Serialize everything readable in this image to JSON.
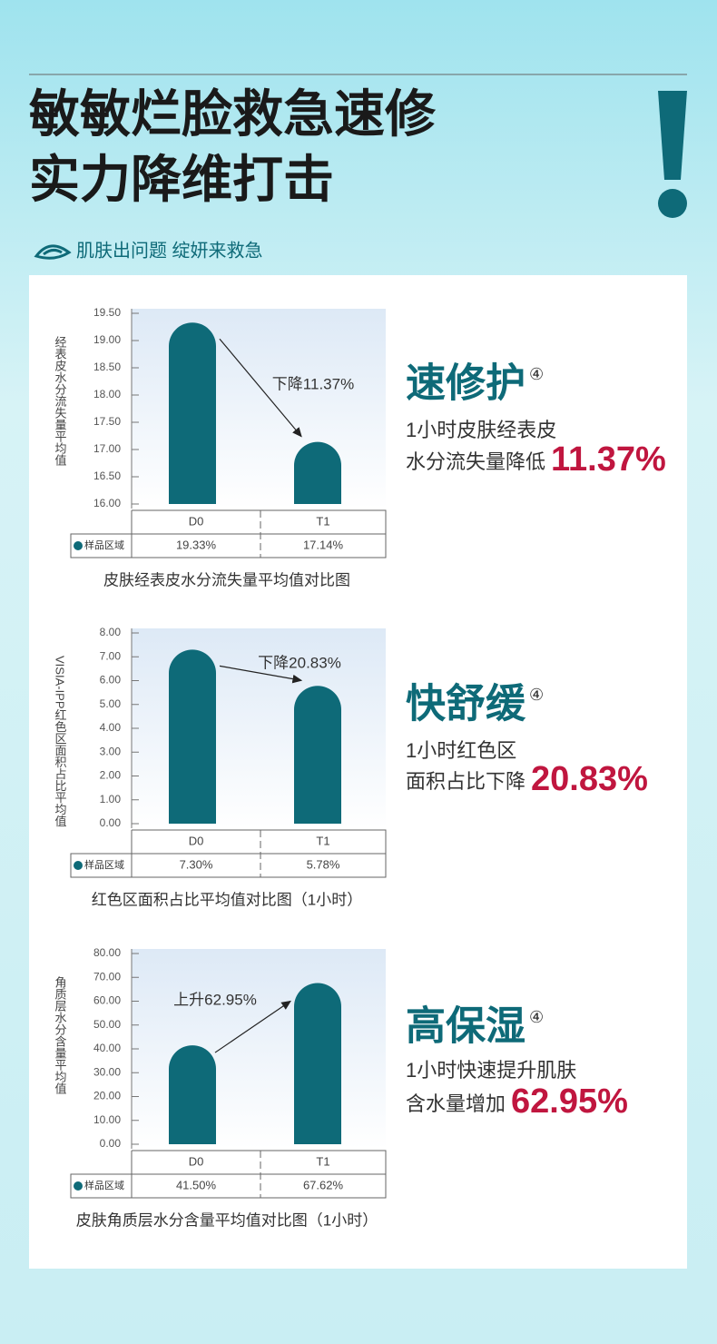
{
  "header": {
    "title_lines": [
      "敏敏烂脸救急速修",
      "实力降维打击"
    ],
    "subtitle": "肌肤出问题 绽妍来救急"
  },
  "chart_data": [
    {
      "type": "bar",
      "y_label": "经表皮水分流失量平均值",
      "categories": [
        "D0",
        "T1"
      ],
      "series": [
        {
          "name": "样品区域",
          "color": "#0e6a78",
          "values": [
            19.33,
            17.14
          ],
          "value_labels": [
            "19.33%",
            "17.14%"
          ]
        }
      ],
      "ylim": [
        16,
        19.5
      ],
      "yticks": [
        {
          "value": 16,
          "label": "16.00"
        },
        {
          "value": 16.5,
          "label": "16.50"
        },
        {
          "value": 17,
          "label": "17.00"
        },
        {
          "value": 17.5,
          "label": "17.50"
        },
        {
          "value": 18,
          "label": "18.00"
        },
        {
          "value": 18.5,
          "label": "18.50"
        },
        {
          "value": 19,
          "label": "19.00"
        },
        {
          "value": 19.5,
          "label": "19.50"
        }
      ],
      "annotation": "下降11.37%",
      "caption": "皮肤经表皮水分流失量平均值对比图"
    },
    {
      "type": "bar",
      "y_label": "VISIA-IPP红色区面积占比平均值",
      "categories": [
        "D0",
        "T1"
      ],
      "series": [
        {
          "name": "样品区域",
          "color": "#0e6a78",
          "values": [
            7.3,
            5.78
          ],
          "value_labels": [
            "7.30%",
            "5.78%"
          ]
        }
      ],
      "ylim": [
        0,
        8
      ],
      "yticks": [
        {
          "value": 0,
          "label": "0.00"
        },
        {
          "value": 1,
          "label": "1.00"
        },
        {
          "value": 2,
          "label": "2.00"
        },
        {
          "value": 3,
          "label": "3.00"
        },
        {
          "value": 4,
          "label": "4.00"
        },
        {
          "value": 5,
          "label": "5.00"
        },
        {
          "value": 6,
          "label": "6.00"
        },
        {
          "value": 7,
          "label": "7.00"
        },
        {
          "value": 8,
          "label": "8.00"
        }
      ],
      "annotation": "下降20.83%",
      "caption": "红色区面积占比平均值对比图（1小时）"
    },
    {
      "type": "bar",
      "y_label": "角质层水分含量平均值",
      "categories": [
        "D0",
        "T1"
      ],
      "series": [
        {
          "name": "样品区域",
          "color": "#0e6a78",
          "values": [
            41.5,
            67.62
          ],
          "value_labels": [
            "41.50%",
            "67.62%"
          ]
        }
      ],
      "ylim": [
        0,
        80
      ],
      "yticks": [
        {
          "value": 0,
          "label": "0.00"
        },
        {
          "value": 10,
          "label": "10.00"
        },
        {
          "value": 20,
          "label": "20.00"
        },
        {
          "value": 30,
          "label": "30.00"
        },
        {
          "value": 40,
          "label": "40.00"
        },
        {
          "value": 50,
          "label": "50.00"
        },
        {
          "value": 60,
          "label": "60.00"
        },
        {
          "value": 70,
          "label": "70.00"
        },
        {
          "value": 80,
          "label": "80.00"
        }
      ],
      "annotation": "上升62.95%",
      "caption": "皮肤角质层水分含量平均值对比图（1小时）"
    }
  ],
  "panels": [
    {
      "title": "速修护",
      "mark": "④",
      "lines": [
        "1小时皮肤经表皮",
        "水分流失量降低"
      ],
      "highlight": "11.37%"
    },
    {
      "title": "快舒缓",
      "mark": "④",
      "lines": [
        "1小时红色区",
        "面积占比下降"
      ],
      "highlight": "20.83%"
    },
    {
      "title": "高保湿",
      "mark": "④",
      "lines": [
        "1小时快速提升肌肤",
        "含水量增加"
      ],
      "highlight": "62.95%"
    }
  ]
}
